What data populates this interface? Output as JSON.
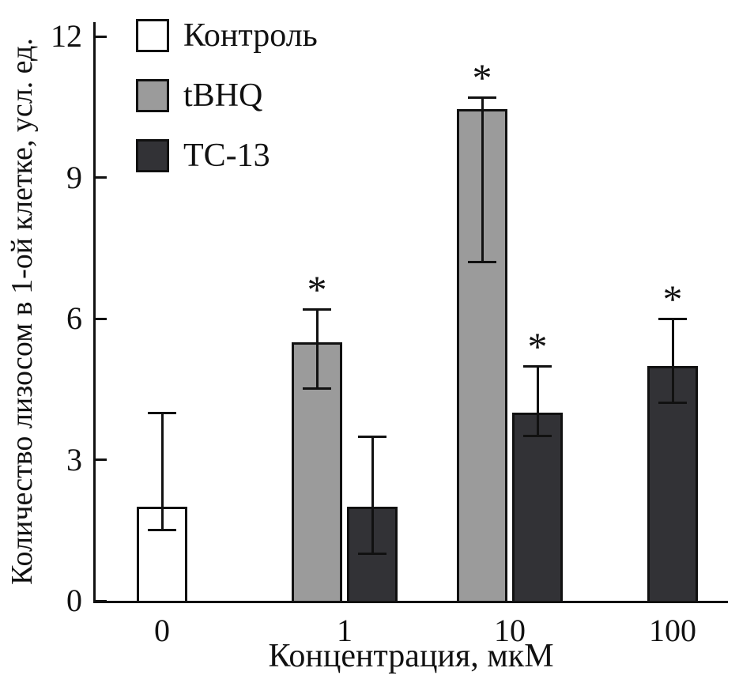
{
  "chart_data": {
    "type": "bar",
    "title": "",
    "xlabel": "Концентрация, мкМ",
    "ylabel": "Количество лизосом в 1-ой клетке, усл. ед.",
    "categories": [
      "0",
      "1",
      "10",
      "100"
    ],
    "yticks": [
      0,
      3,
      6,
      9,
      12
    ],
    "ylim": [
      0,
      12.3
    ],
    "grid": false,
    "legend_position": "top-left",
    "significance_marker": "*",
    "series": [
      {
        "key": "control",
        "name": "Контроль",
        "color": "#ffffff",
        "points": [
          {
            "category": "0",
            "value": 2.0,
            "err_low": 1.5,
            "err_high": 4.0,
            "significant": false
          }
        ]
      },
      {
        "key": "tbhq",
        "name": "tBHQ",
        "color": "#9b9b9b",
        "points": [
          {
            "category": "1",
            "value": 5.5,
            "err_low": 4.5,
            "err_high": 6.2,
            "significant": true
          },
          {
            "category": "10",
            "value": 10.45,
            "err_low": 7.2,
            "err_high": 10.7,
            "significant": true
          }
        ]
      },
      {
        "key": "tc13",
        "name": "ТС-13",
        "color": "#323236",
        "points": [
          {
            "category": "1",
            "value": 2.0,
            "err_low": 1.0,
            "err_high": 3.5,
            "significant": false
          },
          {
            "category": "10",
            "value": 4.0,
            "err_low": 3.5,
            "err_high": 5.0,
            "significant": true
          },
          {
            "category": "100",
            "value": 5.0,
            "err_low": 4.2,
            "err_high": 6.0,
            "significant": true
          }
        ]
      }
    ]
  }
}
